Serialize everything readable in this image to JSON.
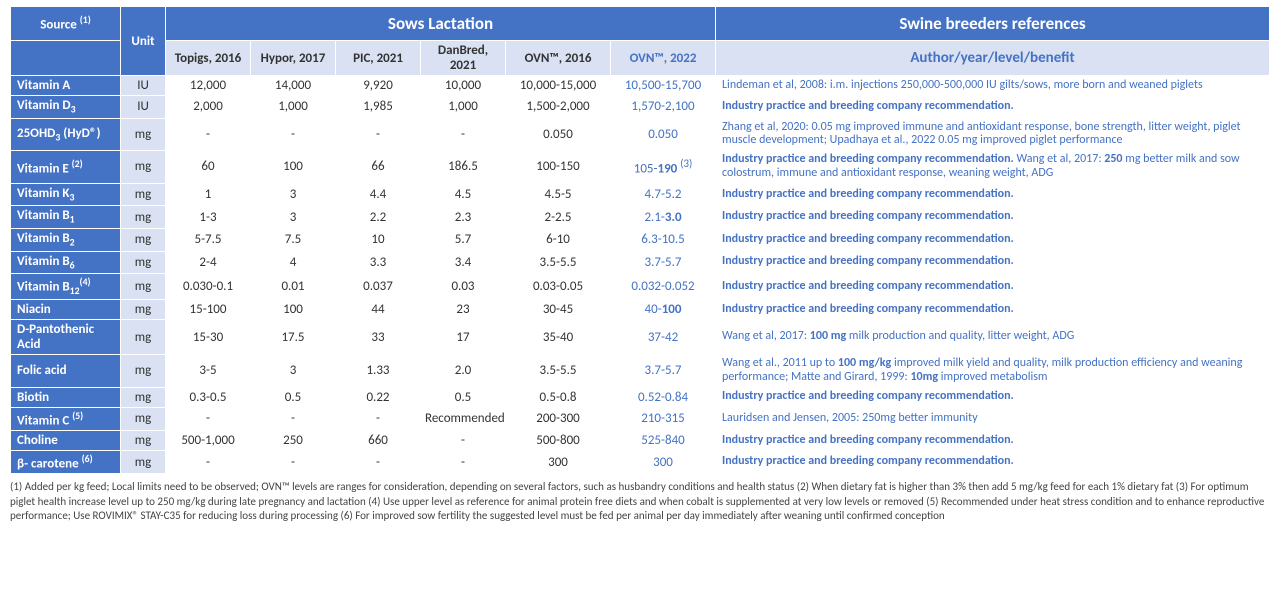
{
  "header": {
    "source": "Source ",
    "source_sup": "(1)",
    "unit": "Unit",
    "group1": "Sows Lactation",
    "group2": "Swine breeders references",
    "ref_sub": "Author/year/level/benefit",
    "cols": [
      "Topigs, 2016",
      "Hypor, 2017",
      "PIC, 2021",
      "DanBred, 2021",
      "OVN™, 2016"
    ],
    "ovn22": "OVN™, 2022"
  },
  "ref_default": "Industry practice and breeding company recommendation.",
  "rows": [
    {
      "label": "Vitamin A",
      "sub": "",
      "sup": "",
      "unit": "IU",
      "v": [
        "12,000",
        "14,000",
        "9,920",
        "10,000",
        "10,000-15,000"
      ],
      "ovn": "10,500-15,700",
      "ref": "Lindeman et al, 2008: i.m. injections 250,000-500,000 IU gilts/sows, more born and weaned piglets"
    },
    {
      "label": "Vitamin D",
      "sub": "3",
      "sup": "",
      "unit": "IU",
      "v": [
        "2,000",
        "1,000",
        "1,985",
        "1,000",
        "1,500-2,000"
      ],
      "ovn": "1,570-2,100",
      "ref": "Industry practice and breeding company recommendation."
    },
    {
      "label": "25OHD",
      "sub": "3",
      "suffix": " (HyD®)",
      "sup": "",
      "unit": "mg",
      "v": [
        "-",
        "-",
        "-",
        "-",
        "0.050"
      ],
      "ovn": "0.050",
      "ref": "Zhang et al, 2020: 0.05 mg improved immune and antioxidant response, bone strength, litter weight, piglet muscle development; Upadhaya et al., 2022 0.05 mg improved piglet performance"
    },
    {
      "label": "Vitamin E ",
      "sub": "",
      "sup": "(2)",
      "unit": "mg",
      "v": [
        "60",
        "100",
        "66",
        "186.5",
        "100-150"
      ],
      "ovn": "105-190 (3)",
      "ovn_html": "105-<b>190</b> <sup>(3)</sup>",
      "ref_html": "<b>Industry practice and breeding company recommendation.</b> Wang et al, 2017: <b>250</b> mg better milk and sow colostrum, immune and antioxidant response, weaning weight, ADG"
    },
    {
      "label": "Vitamin K",
      "sub": "3",
      "sup": "",
      "unit": "mg",
      "v": [
        "1",
        "3",
        "4.4",
        "4.5",
        "4.5-5"
      ],
      "ovn": "4.7-5.2",
      "ref": "Industry practice and breeding company recommendation."
    },
    {
      "label": "Vitamin B",
      "sub": "1",
      "sup": "",
      "unit": "mg",
      "v": [
        "1-3",
        "3",
        "2.2",
        "2.3",
        "2-2.5"
      ],
      "ovn": "2.1-3.0",
      "ovn_html": "2.1-<b>3.0</b>",
      "ref": "Industry practice and breeding company recommendation."
    },
    {
      "label": "Vitamin B",
      "sub": "2",
      "sup": "",
      "unit": "mg",
      "v": [
        "5-7.5",
        "7.5",
        "10",
        "5.7",
        "6-10"
      ],
      "ovn": "6.3-10.5",
      "ref": "Industry practice and breeding company recommendation."
    },
    {
      "label": "Vitamin B",
      "sub": "6",
      "sup": "",
      "unit": "mg",
      "v": [
        "2-4",
        "4",
        "3.3",
        "3.4",
        "3.5-5.5"
      ],
      "ovn": "3.7-5.7",
      "ref": "Industry practice and breeding company recommendation."
    },
    {
      "label": "Vitamin B",
      "sub": "12",
      "sup": "(4)",
      "unit": "mg",
      "v": [
        "0.030-0.1",
        "0.01",
        "0.037",
        "0.03",
        "0.03-0.05"
      ],
      "ovn": "0.032-0.052",
      "ref": "Industry practice and breeding company recommendation."
    },
    {
      "label": "Niacin",
      "sub": "",
      "sup": "",
      "unit": "mg",
      "v": [
        "15-100",
        "100",
        "44",
        "23",
        "30-45"
      ],
      "ovn": "40-100",
      "ovn_html": "40-<b>100</b>",
      "ref": "Industry practice and breeding company recommendation."
    },
    {
      "label": "D-Pantothenic Acid",
      "sub": "",
      "sup": "",
      "unit": "mg",
      "v": [
        "15-30",
        "17.5",
        "33",
        "17",
        "35-40"
      ],
      "ovn": "37-42",
      "ref_html": "Wang et al, 2017: <b>100 mg</b> milk production and quality, litter weight, ADG"
    },
    {
      "label": "Folic acid",
      "sub": "",
      "sup": "",
      "unit": "mg",
      "v": [
        "3-5",
        "3",
        "1.33",
        "2.0",
        "3.5-5.5"
      ],
      "ovn": "3.7-5.7",
      "ref_html": "Wang et al., 2011 up to <b>100 mg/kg</b> improved milk yield and quality, milk production efficiency and weaning performance; Matte and Girard, 1999: <b>10mg</b> improved metabolism"
    },
    {
      "label": "Biotin",
      "sub": "",
      "sup": "",
      "unit": "mg",
      "v": [
        "0.3-0.5",
        "0.5",
        "0.22",
        "0.5",
        "0.5-0.8"
      ],
      "ovn": "0.52-0.84",
      "ref": "Industry practice and breeding company recommendation."
    },
    {
      "label": "Vitamin C ",
      "sub": "",
      "sup": "(5)",
      "unit": "mg",
      "v": [
        "-",
        "-",
        "-",
        "Recommended",
        "200-300"
      ],
      "ovn": "210-315",
      "ref": "Lauridsen and Jensen, 2005: 250mg better immunity"
    },
    {
      "label": "Choline",
      "sub": "",
      "sup": "",
      "unit": "mg",
      "v": [
        "500-1,000",
        "250",
        "660",
        "-",
        "500-800"
      ],
      "ovn": "525-840",
      "ref": "Industry practice and breeding company recommendation."
    },
    {
      "label": "β- carotene ",
      "sub": "",
      "sup": "(6)",
      "unit": "mg",
      "v": [
        "-",
        "-",
        "-",
        "-",
        "300"
      ],
      "ovn": "300",
      "ref": "Industry practice and breeding company recommendation."
    }
  ],
  "footnotes": "(1) Added per kg feed; Local limits need to be observed; OVN™ levels are ranges for consideration, depending on several factors, such as husbandry conditions and health status (2) When dietary fat is higher than 3% then add 5 mg/kg feed for each 1% dietary fat (3) For optimum piglet health increase level up to 250 mg/kg during late pregnancy and lactation (4) Use upper level as reference for animal protein free diets and when cobalt is supplemented at very low levels or removed (5) Recommended under heat stress condition and to enhance reproductive performance; Use ROVIMIX® STAY-C35 for reducing loss during processing (6) For improved sow fertility the suggested level must be fed per animal per day immediately after weaning until confirmed conception"
}
